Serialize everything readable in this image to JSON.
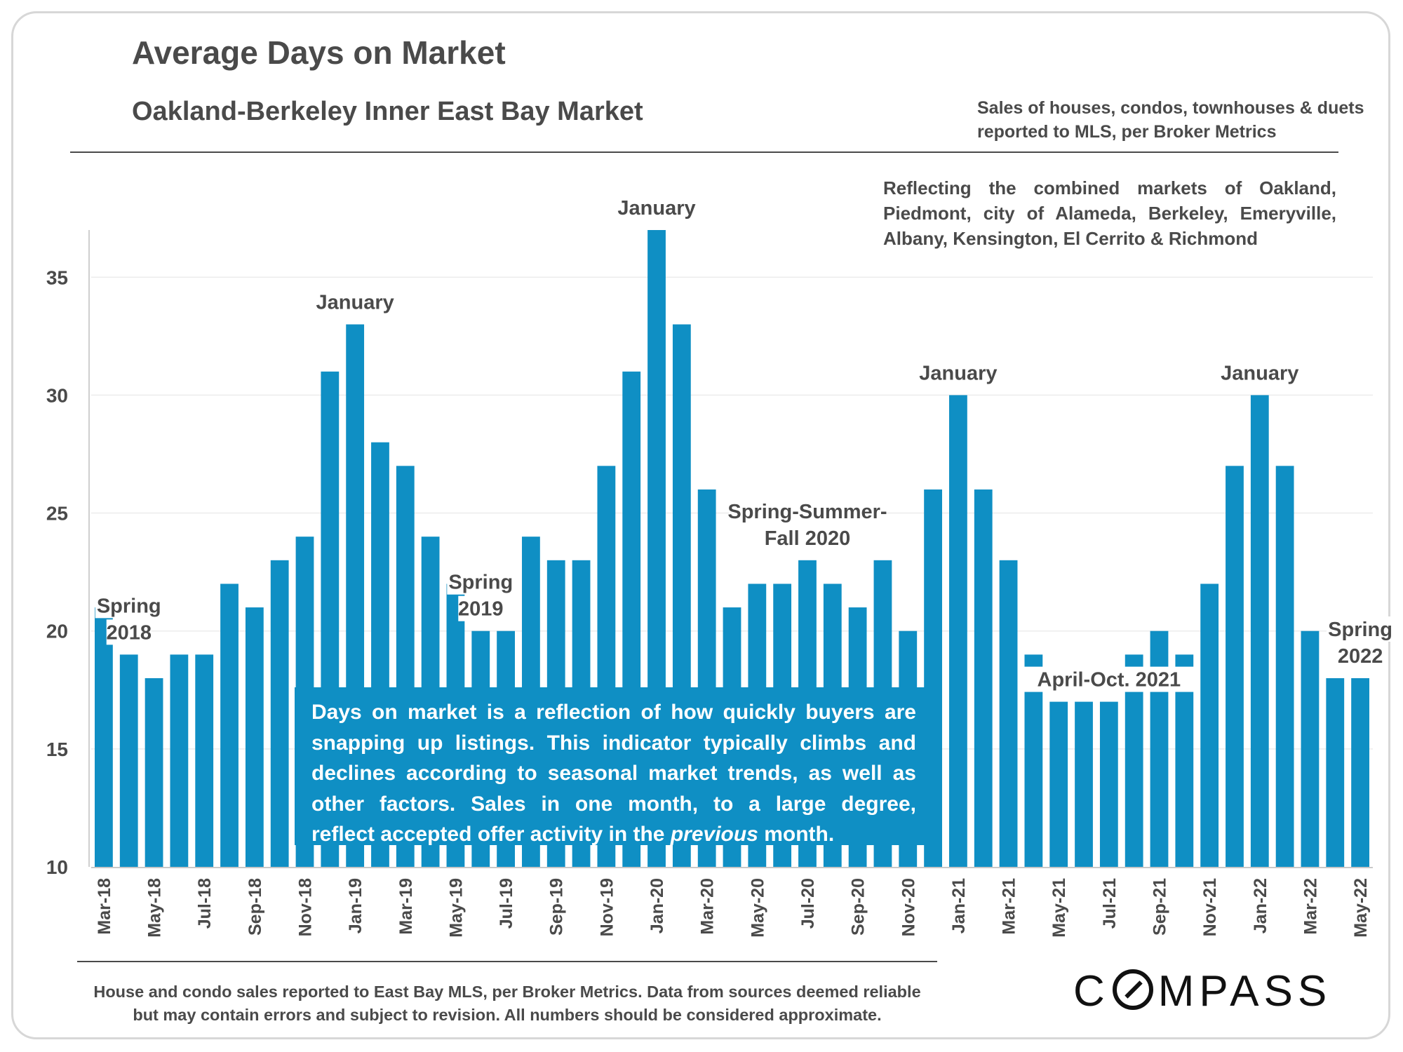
{
  "header": {
    "title": "Average Days on Market",
    "subtitle": "Oakland-Berkeley Inner East Bay Market",
    "source_note": "Sales of houses, condos, townhouses & duets reported to MLS, per Broker Metrics",
    "coverage_note": "Reflecting the combined markets of Oakland, Piedmont, city of Alameda, Berkeley, Emeryville, Albany, Kensington, El Cerrito & Richmond"
  },
  "textbox": {
    "lines": [
      "Days on market is a reflection of how quickly buyers are",
      "snapping up listings. This indicator typically climbs and",
      "declines according to seasonal market trends, as well as",
      "other factors. Sales in one month, to a large degree,"
    ],
    "last_pre": "reflect accepted offer activity in the ",
    "last_em": "previous",
    "last_post": " month."
  },
  "footer": {
    "line1": "House and condo sales reported to East Bay MLS, per Broker Metrics. Data from sources deemed reliable",
    "line2": "but may contain errors and subject to revision. All numbers should be considered approximate."
  },
  "logo": {
    "pre": "C",
    "post": "MPASS"
  },
  "colors": {
    "bar": "#0f8fc4",
    "text": "#4a4a4a",
    "grid": "#ececec"
  },
  "chart_data": {
    "type": "bar",
    "title": "Average Days on Market",
    "xlabel": "",
    "ylabel": "",
    "ylim": [
      10,
      37
    ],
    "yticks": [
      10,
      15,
      20,
      25,
      30,
      35
    ],
    "grid": true,
    "categories": [
      "Mar-18",
      "Apr-18",
      "May-18",
      "Jun-18",
      "Jul-18",
      "Aug-18",
      "Sep-18",
      "Oct-18",
      "Nov-18",
      "Dec-18",
      "Jan-19",
      "Feb-19",
      "Mar-19",
      "Apr-19",
      "May-19",
      "Jun-19",
      "Jul-19",
      "Aug-19",
      "Sep-19",
      "Oct-19",
      "Nov-19",
      "Dec-19",
      "Jan-20",
      "Feb-20",
      "Mar-20",
      "Apr-20",
      "May-20",
      "Jun-20",
      "Jul-20",
      "Aug-20",
      "Sep-20",
      "Oct-20",
      "Nov-20",
      "Dec-20",
      "Jan-21",
      "Feb-21",
      "Mar-21",
      "Apr-21",
      "May-21",
      "Jun-21",
      "Jul-21",
      "Aug-21",
      "Sep-21",
      "Oct-21",
      "Nov-21",
      "Dec-21",
      "Jan-22",
      "Feb-22",
      "Mar-22",
      "Apr-22",
      "May-22"
    ],
    "tick_labels_shown": [
      "Mar-18",
      "May-18",
      "Jul-18",
      "Sep-18",
      "Nov-18",
      "Jan-19",
      "Mar-19",
      "May-19",
      "Jul-19",
      "Sep-19",
      "Nov-19",
      "Jan-20",
      "Mar-20",
      "May-20",
      "Jul-20",
      "Sep-20",
      "Nov-20",
      "Jan-21",
      "Mar-21",
      "May-21",
      "Jul-21",
      "Sep-21",
      "Nov-21",
      "Jan-22",
      "Mar-22",
      "May-22"
    ],
    "values": [
      21,
      19,
      18,
      19,
      19,
      22,
      21,
      23,
      24,
      31,
      33,
      28,
      27,
      24,
      22,
      20,
      20,
      24,
      23,
      23,
      27,
      31,
      37,
      33,
      26,
      21,
      22,
      22,
      23,
      22,
      21,
      23,
      20,
      26,
      30,
      26,
      23,
      19,
      17,
      17,
      17,
      19,
      20,
      19,
      22,
      27,
      30,
      27,
      20,
      18,
      18
    ],
    "annotations": [
      {
        "text": "Spring 2018",
        "lines": [
          "Spring",
          "2018"
        ],
        "category": "Apr-18"
      },
      {
        "text": "January",
        "lines": [
          "January"
        ],
        "category": "Jan-19"
      },
      {
        "text": "Spring 2019",
        "lines": [
          "Spring",
          "2019"
        ],
        "category": "Jun-19"
      },
      {
        "text": "January",
        "lines": [
          "January"
        ],
        "category": "Jan-20"
      },
      {
        "text": "Spring-Summer-Fall 2020",
        "lines": [
          "Spring-Summer-",
          "Fall 2020"
        ],
        "category": "Jul-20"
      },
      {
        "text": "January",
        "lines": [
          "January"
        ],
        "category": "Jan-21"
      },
      {
        "text": "April-Oct. 2021",
        "lines": [
          "April-Oct.  2021"
        ],
        "category": "Jul-21"
      },
      {
        "text": "January",
        "lines": [
          "January"
        ],
        "category": "Jan-22"
      },
      {
        "text": "Spring 2022",
        "lines": [
          "Spring",
          "2022"
        ],
        "category": "May-22"
      }
    ]
  }
}
